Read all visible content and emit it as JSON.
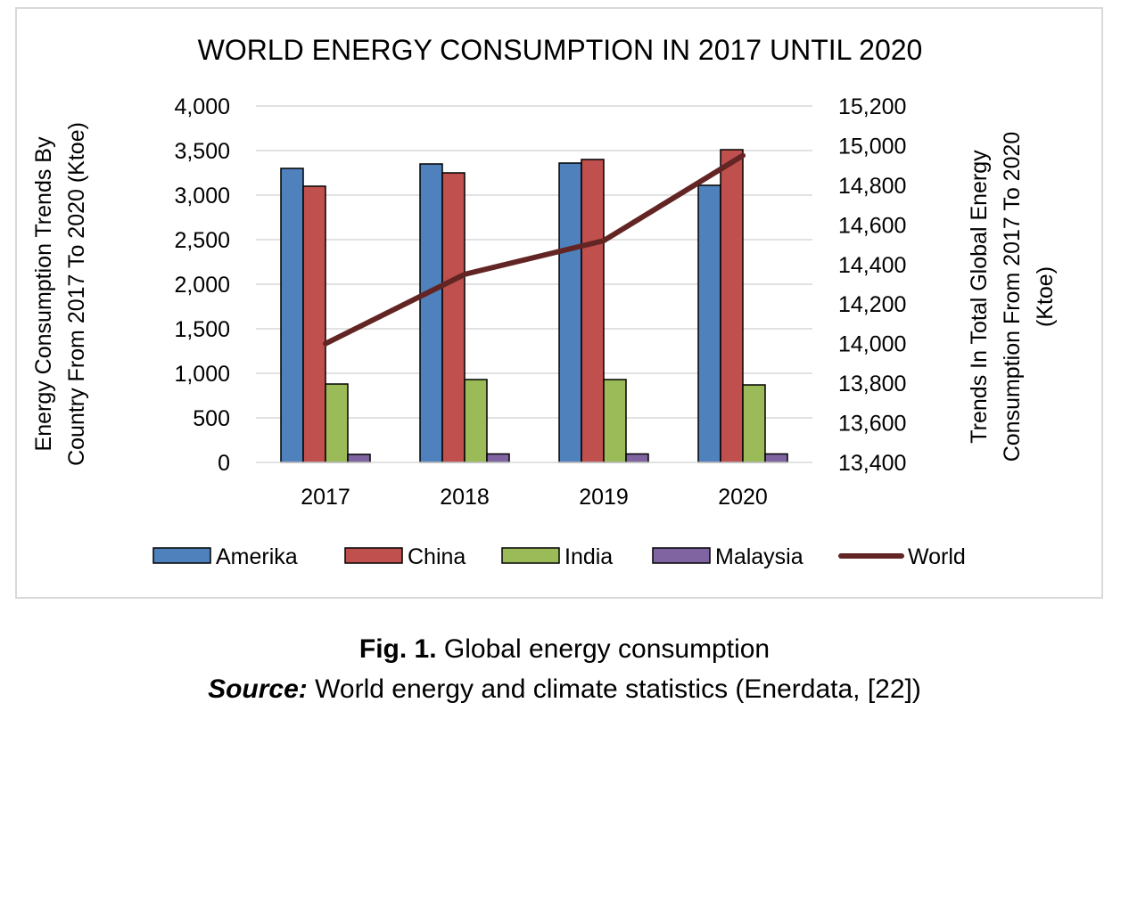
{
  "chart_data": {
    "type": "bar",
    "title": "WORLD ENERGY CONSUMPTION IN 2017 UNTIL 2020",
    "categories": [
      "2017",
      "2018",
      "2019",
      "2020"
    ],
    "ylabel_lines": [
      "Energy Consumption Trends By",
      "Country From 2017 To 2020 (Ktoe)"
    ],
    "y2label_lines": [
      "Trends In Total Global Energy",
      "Consumption From 2017 To 2020",
      "(Ktoe)"
    ],
    "ylim": [
      0,
      4000
    ],
    "y_ticks": [
      0,
      500,
      1000,
      1500,
      2000,
      2500,
      3000,
      3500,
      4000
    ],
    "y_tick_labels": [
      "0",
      "500",
      "1,000",
      "1,500",
      "2,000",
      "2,500",
      "3,000",
      "3,500",
      "4,000"
    ],
    "y2lim": [
      13400,
      15200
    ],
    "y2_ticks": [
      13400,
      13600,
      13800,
      14000,
      14200,
      14400,
      14600,
      14800,
      15000,
      15200
    ],
    "y2_tick_labels": [
      "13,400",
      "13,600",
      "13,800",
      "14,000",
      "14,200",
      "14,400",
      "14,600",
      "14,800",
      "15,000",
      "15,200"
    ],
    "grid": true,
    "legend_position": "bottom",
    "series": [
      {
        "name": "Amerika",
        "type": "bar",
        "axis": "left",
        "color": "#4f81bd",
        "values": [
          3300,
          3350,
          3360,
          3110
        ]
      },
      {
        "name": "China",
        "type": "bar",
        "axis": "left",
        "color": "#c0504d",
        "values": [
          3100,
          3250,
          3400,
          3510
        ]
      },
      {
        "name": "India",
        "type": "bar",
        "axis": "left",
        "color": "#9bbb59",
        "values": [
          880,
          930,
          930,
          870
        ]
      },
      {
        "name": "Malaysia",
        "type": "bar",
        "axis": "left",
        "color": "#8064a2",
        "values": [
          90,
          95,
          95,
          95
        ]
      },
      {
        "name": "World",
        "type": "line",
        "axis": "right",
        "color": "#632523",
        "values": [
          14000,
          14350,
          14520,
          14950
        ]
      }
    ]
  },
  "caption": {
    "fig_label": "Fig. 1.",
    "fig_text": " Global energy consumption",
    "source_label": "Source:",
    "source_text": " World energy and climate statistics (Enerdata, [22])"
  }
}
